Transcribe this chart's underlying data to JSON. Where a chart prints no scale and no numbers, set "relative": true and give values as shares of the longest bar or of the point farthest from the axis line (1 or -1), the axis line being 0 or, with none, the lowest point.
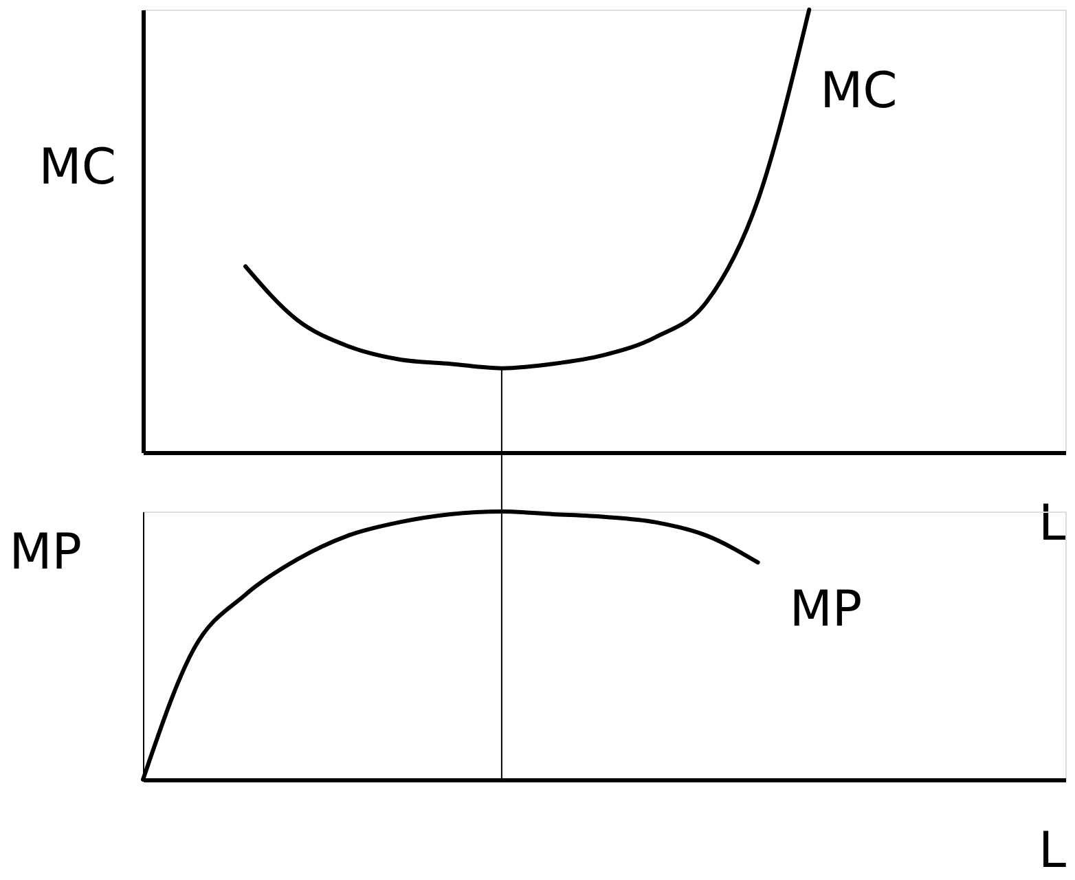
{
  "chart_data": [
    {
      "type": "line",
      "relative": true,
      "xlabel": "L",
      "ylabel": "MC",
      "categories": [
        null,
        null,
        null,
        null,
        null,
        null,
        null,
        null,
        null,
        null,
        null,
        null,
        null,
        null,
        null,
        null,
        null,
        null,
        null
      ],
      "series": [
        {
          "name": "MC",
          "color": "#000000",
          "values": [
            null,
            null,
            0.42,
            0.3,
            0.24,
            0.21,
            0.2,
            0.19,
            0.2,
            0.22,
            0.26,
            0.34,
            0.57,
            1.0,
            null,
            null,
            null,
            null,
            null
          ]
        }
      ],
      "tick_labels": false,
      "grid": false
    },
    {
      "type": "line",
      "relative": true,
      "xlabel": "L",
      "ylabel": "MP",
      "categories": [
        null,
        null,
        null,
        null,
        null,
        null,
        null,
        null,
        null,
        null,
        null,
        null,
        null,
        null,
        null,
        null,
        null,
        null,
        null
      ],
      "series": [
        {
          "name": "MP",
          "color": "#000000",
          "values": [
            0,
            0.49,
            0.69,
            0.82,
            0.91,
            0.96,
            0.99,
            1.0,
            0.99,
            0.98,
            0.96,
            0.91,
            0.81,
            null,
            null,
            null,
            null,
            null,
            null
          ]
        }
      ],
      "tick_labels": false,
      "grid": false
    }
  ]
}
